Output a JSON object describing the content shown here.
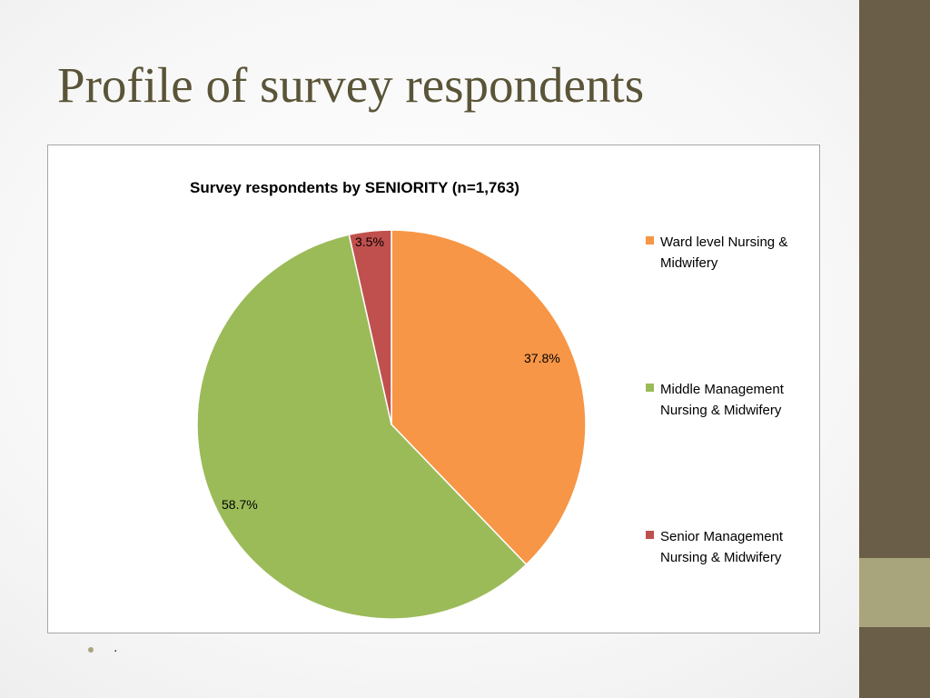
{
  "slide": {
    "title": "Profile of survey respondents",
    "bullet_text": "."
  },
  "theme": {
    "title_color": "#5a5438",
    "sidebar_color": "#6b5e48",
    "sidebar_accent_color": "#a8a57c"
  },
  "chart_data": {
    "type": "pie",
    "title": "Survey respondents by SENIORITY (n=1,763)",
    "categories": [
      "Ward level  Nursing & Midwifery",
      "Middle Management Nursing & Midwifery",
      "Senior Management Nursing & Midwifery"
    ],
    "values": [
      37.8,
      58.7,
      3.5
    ],
    "labels": [
      "37.8%",
      "58.7%",
      "3.5%"
    ],
    "colors": [
      "#f79646",
      "#9bbb59",
      "#c0504d"
    ],
    "start": "12 o'clock",
    "direction": "clockwise",
    "legend_position": "right"
  }
}
